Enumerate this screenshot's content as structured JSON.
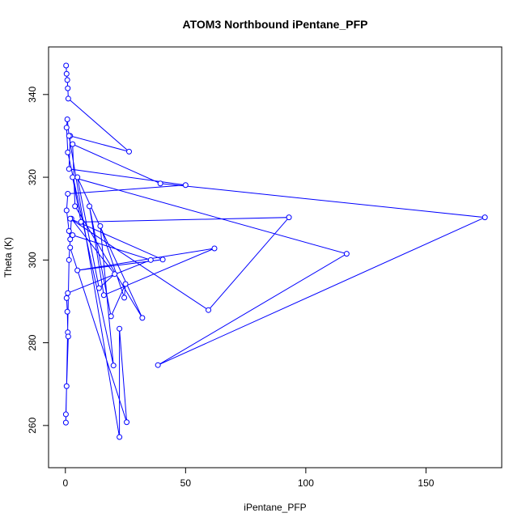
{
  "chart_data": {
    "type": "scatter-line",
    "title": "ATOM3 Northbound iPentane_PFP",
    "x_label": "iPentane_PFP",
    "y_label": "Theta (K)",
    "color": "blue",
    "x": [
      0.3,
      0.5,
      0.8,
      1,
      1.2,
      26.5,
      2,
      1.5,
      50,
      1,
      0.5,
      1.5,
      2,
      3,
      35.5,
      1,
      0.5,
      0.8,
      1,
      1.2,
      0.5,
      0.2,
      0.2,
      1.5,
      2.5,
      20.5,
      14,
      5,
      32,
      4,
      3,
      39.5,
      174.5,
      38.5,
      117,
      3,
      6.5,
      93,
      59.5,
      2,
      40.5,
      5,
      62,
      16,
      10,
      19,
      25,
      24.5,
      14.5,
      20,
      1,
      0.5,
      0.8,
      1.5,
      22.5,
      22.5,
      25.5,
      2
    ],
    "values": [
      347,
      345,
      343.5,
      341.5,
      339,
      326.2,
      330,
      322,
      318.1,
      316,
      312,
      307,
      305,
      306,
      300,
      292,
      290.8,
      287.5,
      282.5,
      281.5,
      269.5,
      262.7,
      260.7,
      300,
      310,
      296.6,
      293.2,
      320,
      286,
      313,
      328,
      318.5,
      310.3,
      274.6,
      301.5,
      320,
      309.2,
      310.3,
      287.9,
      310,
      300.1,
      297.5,
      302.8,
      291.5,
      313,
      286.4,
      294.2,
      290.9,
      308.2,
      274.5,
      326,
      332,
      334,
      330,
      257.2,
      283.4,
      260.8,
      303
    ],
    "xlim": [
      -7,
      181.5
    ],
    "ylim": [
      249.8,
      351.5
    ],
    "xticks": [
      0,
      50,
      100,
      150
    ],
    "yticks": [
      260,
      280,
      300,
      320,
      340
    ]
  }
}
